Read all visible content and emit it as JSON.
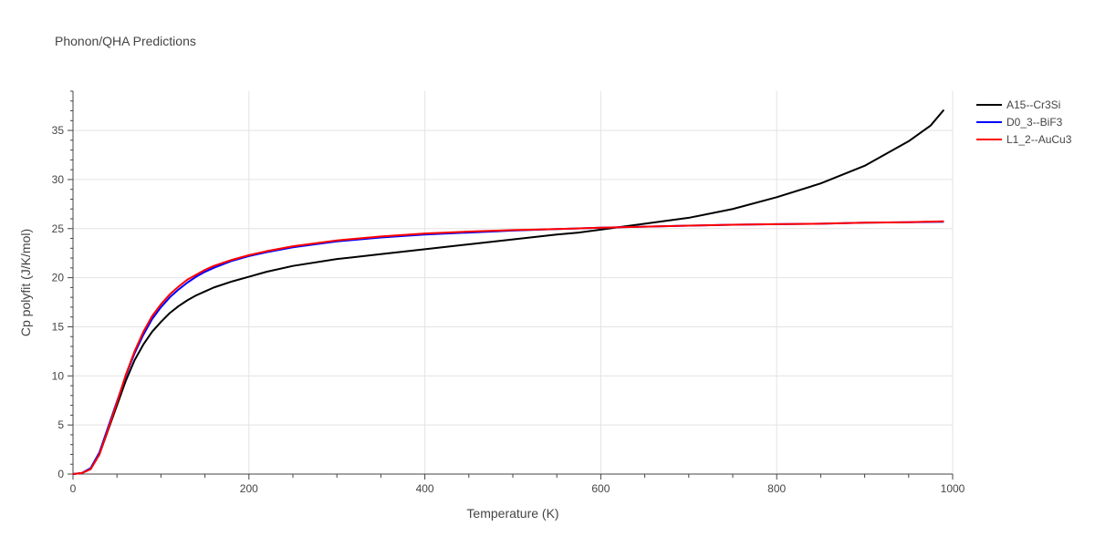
{
  "chart_data": {
    "type": "line",
    "title": "Phonon/QHA Predictions",
    "xlabel": "Temperature (K)",
    "ylabel": "Cp polyfit (J/K/mol)",
    "xlim": [
      0,
      1000
    ],
    "ylim": [
      0,
      39
    ],
    "x_ticks": [
      0,
      200,
      400,
      600,
      800,
      1000
    ],
    "x_tick_labels": [
      "0",
      "200",
      "400",
      "600",
      "800",
      "1000"
    ],
    "y_ticks": [
      0,
      5,
      10,
      15,
      20,
      25,
      30,
      35
    ],
    "y_tick_labels": [
      "0",
      "5",
      "10",
      "15",
      "20",
      "25",
      "30",
      "35"
    ],
    "grid": true,
    "legend_position": "top-right",
    "series": [
      {
        "name": "A15--Cr3Si",
        "color": "#000000",
        "x": [
          0,
          10,
          20,
          30,
          40,
          50,
          60,
          70,
          80,
          90,
          100,
          110,
          120,
          130,
          140,
          150,
          160,
          180,
          200,
          220,
          250,
          300,
          350,
          400,
          450,
          500,
          550,
          575,
          600,
          625,
          650,
          700,
          750,
          800,
          850,
          900,
          950,
          975,
          990
        ],
        "values": [
          0,
          0.1,
          0.5,
          2.0,
          4.5,
          7.0,
          9.5,
          11.6,
          13.2,
          14.5,
          15.5,
          16.4,
          17.1,
          17.7,
          18.2,
          18.6,
          19.0,
          19.6,
          20.1,
          20.6,
          21.2,
          21.9,
          22.4,
          22.9,
          23.4,
          23.9,
          24.4,
          24.6,
          24.9,
          25.2,
          25.5,
          26.1,
          27.0,
          28.2,
          29.6,
          31.4,
          33.9,
          35.5,
          37.1
        ]
      },
      {
        "name": "D0_3--BiF3",
        "color": "#0000ff",
        "x": [
          0,
          10,
          20,
          30,
          40,
          50,
          60,
          70,
          80,
          90,
          100,
          110,
          120,
          130,
          140,
          150,
          160,
          180,
          200,
          220,
          250,
          300,
          350,
          400,
          450,
          500,
          550,
          600,
          650,
          700,
          750,
          800,
          850,
          900,
          950,
          990
        ],
        "values": [
          0,
          0.1,
          0.6,
          2.2,
          4.8,
          7.4,
          10.0,
          12.3,
          14.2,
          15.8,
          17.0,
          18.0,
          18.8,
          19.5,
          20.1,
          20.6,
          21.0,
          21.7,
          22.2,
          22.6,
          23.1,
          23.7,
          24.1,
          24.4,
          24.6,
          24.8,
          24.95,
          25.1,
          25.2,
          25.3,
          25.4,
          25.45,
          25.5,
          25.6,
          25.65,
          25.7
        ]
      },
      {
        "name": "L1_2--AuCu3",
        "color": "#ff0000",
        "x": [
          0,
          10,
          20,
          30,
          40,
          50,
          60,
          70,
          80,
          90,
          100,
          110,
          120,
          130,
          140,
          150,
          160,
          180,
          200,
          220,
          250,
          300,
          350,
          400,
          450,
          500,
          550,
          600,
          650,
          700,
          750,
          800,
          850,
          900,
          950,
          990
        ],
        "values": [
          0,
          0.1,
          0.5,
          2.0,
          4.6,
          7.3,
          10.1,
          12.5,
          14.5,
          16.1,
          17.3,
          18.3,
          19.1,
          19.8,
          20.3,
          20.8,
          21.2,
          21.8,
          22.3,
          22.7,
          23.2,
          23.8,
          24.2,
          24.5,
          24.7,
          24.85,
          24.95,
          25.1,
          25.2,
          25.3,
          25.4,
          25.45,
          25.5,
          25.6,
          25.65,
          25.75
        ]
      }
    ]
  }
}
